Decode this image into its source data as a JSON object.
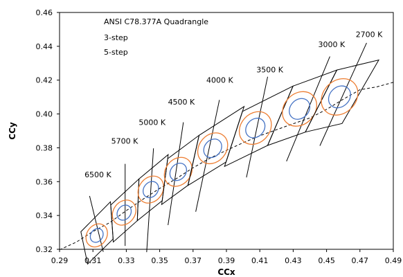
{
  "chart_data": {
    "type": "scatter",
    "title": "",
    "xlabel": "CCx",
    "ylabel": "CCy",
    "xlim": [
      0.29,
      0.49
    ],
    "ylim": [
      0.32,
      0.46
    ],
    "xticks": [
      "0.29",
      "0.31",
      "0.33",
      "0.35",
      "0.37",
      "0.39",
      "0.41",
      "0.43",
      "0.45",
      "0.47",
      "0.49"
    ],
    "yticks": [
      "0.32",
      "0.34",
      "0.36",
      "0.38",
      "0.40",
      "0.42",
      "0.44",
      "0.46"
    ],
    "grid": false,
    "legend": [
      {
        "label": "ANSI C78.377A Quadrangle",
        "color": "#000000"
      },
      {
        "label": "3-step",
        "color": "#4472C4"
      },
      {
        "label": "5-step",
        "color": "#ED7D31"
      }
    ],
    "colors": {
      "quadrangle": "#000000",
      "three_step": "#4472C4",
      "five_step": "#ED7D31",
      "planckian": "#000000"
    },
    "planckian_locus": {
      "x": [
        0.29,
        0.3,
        0.31,
        0.32,
        0.33,
        0.34,
        0.35,
        0.36,
        0.37,
        0.38,
        0.39,
        0.4,
        0.41,
        0.42,
        0.43,
        0.44,
        0.45,
        0.46,
        0.47,
        0.48,
        0.49
      ],
      "y": [
        0.3197,
        0.3242,
        0.3305,
        0.3357,
        0.3429,
        0.3496,
        0.356,
        0.3618,
        0.3682,
        0.3738,
        0.3785,
        0.383,
        0.3871,
        0.3907,
        0.3942,
        0.3976,
        0.4027,
        0.4087,
        0.4143,
        0.416,
        0.4187
      ]
    },
    "quadrangles": [
      {
        "label": "6500 K",
        "center": [
          0.3123,
          0.3282
        ],
        "corners": [
          [
            0.3028,
            0.3304
          ],
          [
            0.3205,
            0.3481
          ],
          [
            0.3221,
            0.3261
          ],
          [
            0.3068,
            0.3113
          ]
        ],
        "label_at": [
          0.313,
          0.3625
        ],
        "isotemp": [
          [
            0.308,
            0.3515
          ],
          [
            0.3162,
            0.3185
          ]
        ]
      },
      {
        "label": "5700 K",
        "center": [
          0.3287,
          0.3417
        ],
        "corners": [
          [
            0.3207,
            0.3462
          ],
          [
            0.3376,
            0.3616
          ],
          [
            0.3366,
            0.3369
          ],
          [
            0.3222,
            0.3243
          ]
        ],
        "label_at": [
          0.329,
          0.3825
        ],
        "isotemp": [
          [
            0.3293,
            0.3705
          ],
          [
            0.3293,
            0.322
          ]
        ]
      },
      {
        "label": "5000 K",
        "center": [
          0.3447,
          0.3553
        ],
        "corners": [
          [
            0.3376,
            0.3616
          ],
          [
            0.3551,
            0.376
          ],
          [
            0.3515,
            0.3487
          ],
          [
            0.3366,
            0.3369
          ]
        ],
        "label_at": [
          0.3455,
          0.3935
        ],
        "isotemp": [
          [
            0.3463,
            0.3797
          ],
          [
            0.3422,
            0.3183
          ]
        ]
      },
      {
        "label": "4500 K",
        "center": [
          0.3611,
          0.3658
        ],
        "corners": [
          [
            0.3548,
            0.3736
          ],
          [
            0.3736,
            0.3874
          ],
          [
            0.3669,
            0.3578
          ],
          [
            0.3512,
            0.3465
          ]
        ],
        "label_at": [
          0.363,
          0.4055
        ],
        "isotemp": [
          [
            0.3642,
            0.3951
          ],
          [
            0.355,
            0.3343
          ]
        ]
      },
      {
        "label": "4000 K",
        "center": [
          0.3818,
          0.3797
        ],
        "corners": [
          [
            0.3736,
            0.3874
          ],
          [
            0.4006,
            0.4044
          ],
          [
            0.3898,
            0.3716
          ],
          [
            0.367,
            0.3578
          ]
        ],
        "label_at": [
          0.386,
          0.4185
        ],
        "isotemp": [
          [
            0.3858,
            0.4083
          ],
          [
            0.3716,
            0.3422
          ]
        ]
      },
      {
        "label": "3500 K",
        "center": [
          0.4073,
          0.3917
        ],
        "corners": [
          [
            0.3996,
            0.4015
          ],
          [
            0.4299,
            0.4165
          ],
          [
            0.4147,
            0.3814
          ],
          [
            0.3889,
            0.369
          ]
        ],
        "label_at": [
          0.416,
          0.4245
        ],
        "isotemp": [
          [
            0.4147,
            0.422
          ],
          [
            0.402,
            0.3625
          ]
        ]
      },
      {
        "label": "3000 K",
        "center": [
          0.4338,
          0.403
        ],
        "corners": [
          [
            0.4299,
            0.4165
          ],
          [
            0.4562,
            0.426
          ],
          [
            0.4373,
            0.3893
          ],
          [
            0.4147,
            0.3814
          ]
        ],
        "label_at": [
          0.453,
          0.4395
        ],
        "isotemp": [
          [
            0.452,
            0.434
          ],
          [
            0.426,
            0.372
          ]
        ]
      },
      {
        "label": "2700 K",
        "center": [
          0.4578,
          0.4101
        ],
        "corners": [
          [
            0.4562,
            0.426
          ],
          [
            0.4813,
            0.4319
          ],
          [
            0.4593,
            0.3944
          ],
          [
            0.4373,
            0.3893
          ]
        ],
        "label_at": [
          0.4755,
          0.4455
        ],
        "isotemp": [
          [
            0.474,
            0.442
          ],
          [
            0.446,
            0.3812
          ]
        ]
      }
    ]
  }
}
